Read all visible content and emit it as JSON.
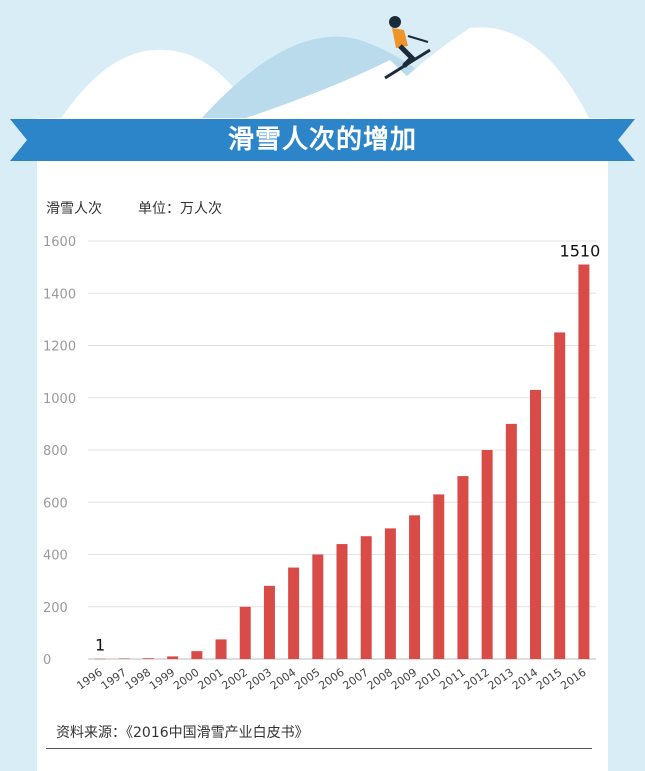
{
  "header": {
    "title": "滑雪人次的增加"
  },
  "caption": {
    "series_label": "滑雪人次",
    "unit_label": "单位：万人次"
  },
  "source": {
    "text": "资料来源：《2016中国滑雪产业白皮书》"
  },
  "colors": {
    "background": "#d9edf7",
    "banner": "#2d85c9",
    "bar": "#d84b47",
    "panel": "#ffffff"
  },
  "chart_data": {
    "type": "bar",
    "title": "",
    "xlabel": "",
    "ylabel": "滑雪人次",
    "ylim": [
      0,
      1600
    ],
    "yticks": [
      0,
      200,
      400,
      600,
      800,
      1000,
      1200,
      1400,
      1600
    ],
    "categories": [
      "1996",
      "1997",
      "1998",
      "1999",
      "2000",
      "2001",
      "2002",
      "2003",
      "2004",
      "2005",
      "2006",
      "2007",
      "2008",
      "2009",
      "2010",
      "2011",
      "2012",
      "2013",
      "2014",
      "2015",
      "2016"
    ],
    "values": [
      1,
      2,
      3,
      10,
      30,
      75,
      200,
      280,
      350,
      400,
      440,
      470,
      500,
      550,
      630,
      700,
      800,
      900,
      1030,
      1250,
      1510
    ],
    "data_labels": [
      {
        "category": "1996",
        "text": "1"
      },
      {
        "category": "2016",
        "text": "1510"
      }
    ],
    "grid": true
  }
}
